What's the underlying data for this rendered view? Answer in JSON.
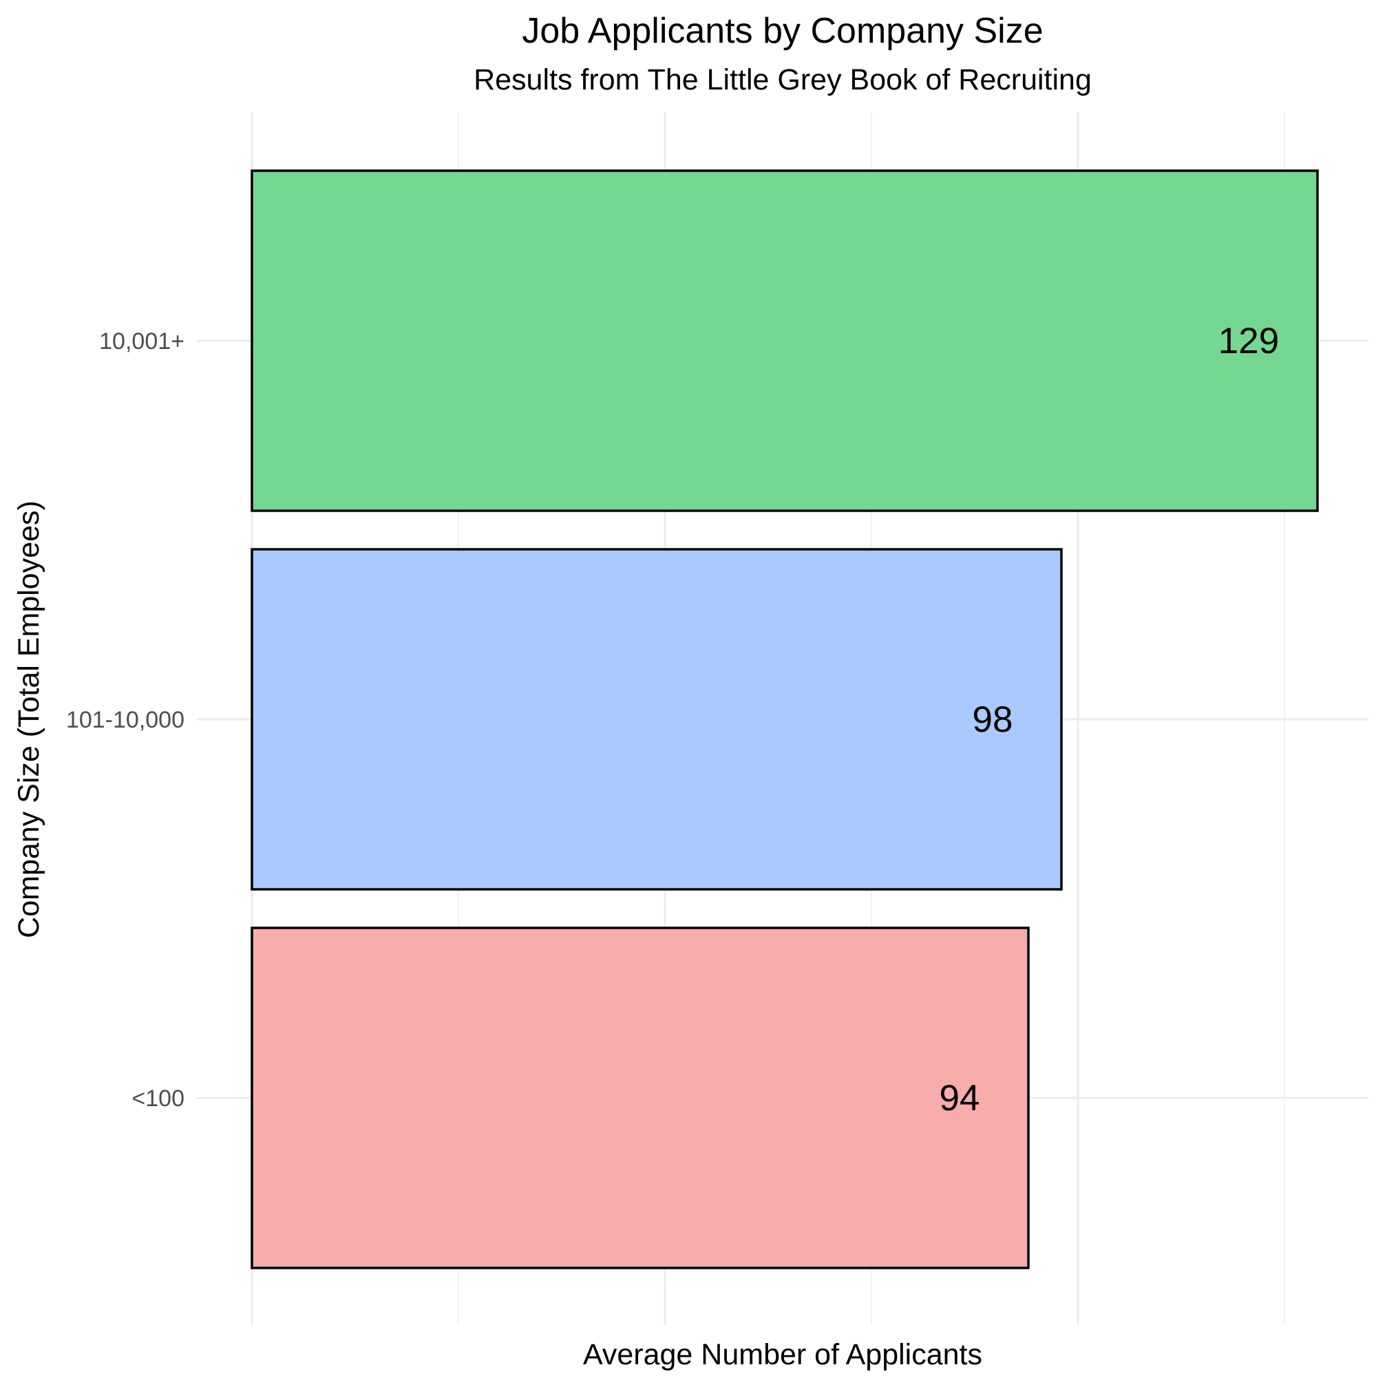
{
  "chart_data": {
    "type": "bar",
    "orientation": "horizontal",
    "title": "Job Applicants by Company Size",
    "subtitle": "Results from The Little Grey Book of Recruiting",
    "xlabel": "Average Number of Applicants",
    "ylabel": "Company Size (Total Employees)",
    "categories": [
      "<100",
      "101-10,000",
      "10,001+"
    ],
    "values": [
      94,
      98,
      129
    ],
    "data_labels": [
      "94",
      "98",
      "129"
    ],
    "colors": [
      "#F8A9A9",
      "#A7C7FD",
      "#6FD78F"
    ],
    "xlim": [
      0,
      136
    ],
    "x_major_ticks": [
      0,
      50,
      100
    ],
    "x_minor_ticks": [
      25,
      75,
      125
    ],
    "x_tick_labels_shown": false,
    "grid": true,
    "legend": "none"
  }
}
